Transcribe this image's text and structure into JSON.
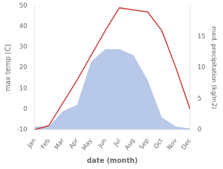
{
  "chart_data": {
    "type": "line",
    "categories": [
      "Jan",
      "Feb",
      "Mar",
      "Apr",
      "May",
      "Jun",
      "Jul",
      "Aug",
      "Sep",
      "Oct",
      "Nov",
      "Dec"
    ],
    "xlabel": "date (month)",
    "ylabel": "max temp (C)",
    "y2label": "med. precipitation (kg/m2)",
    "series": [
      {
        "type": "area",
        "axis": "y2",
        "color": "#b8c8e8",
        "values": [
          0.5,
          0.5,
          3,
          4,
          11,
          13,
          13,
          12,
          8,
          2,
          0.5,
          0.2
        ]
      },
      {
        "type": "line",
        "color": "#cc3333",
        "values": [
          -10,
          -8,
          3,
          14,
          26,
          38,
          49,
          48,
          47,
          38,
          20,
          0
        ]
      }
    ],
    "ylim": [
      -10,
      50
    ],
    "yticks": [
      -10,
      0,
      10,
      20,
      30,
      40,
      50
    ],
    "y2lim": [
      0,
      20
    ],
    "y2ticks": [
      0,
      5,
      10,
      15
    ],
    "grid": false
  }
}
